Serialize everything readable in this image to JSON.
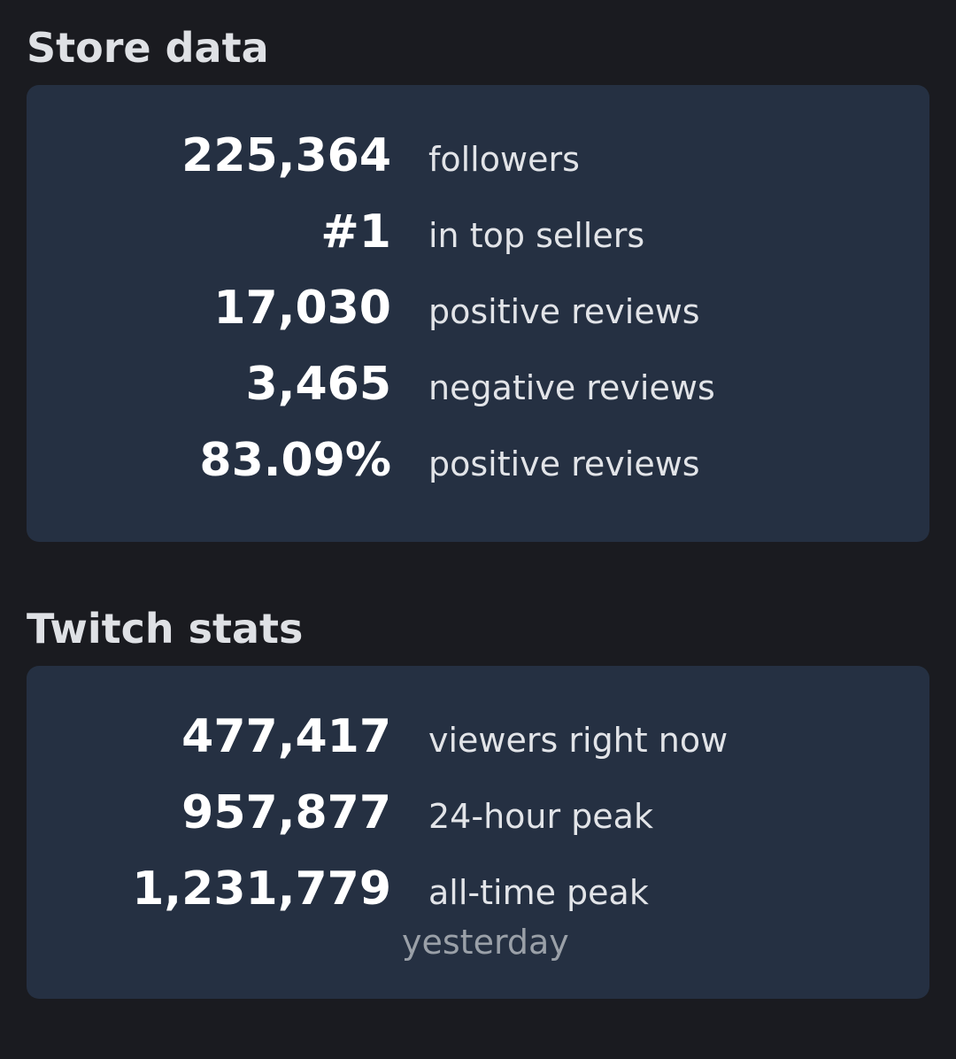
{
  "sections": [
    {
      "title": "Store data",
      "rows": [
        {
          "value": "225,364",
          "label": "followers"
        },
        {
          "value": "#1",
          "label": "in top sellers"
        },
        {
          "value": "17,030",
          "label": "positive reviews"
        },
        {
          "value": "3,465",
          "label": "negative reviews"
        },
        {
          "value": "83.09%",
          "label": "positive reviews"
        }
      ]
    },
    {
      "title": "Twitch stats",
      "rows": [
        {
          "value": "477,417",
          "label": "viewers right now"
        },
        {
          "value": "957,877",
          "label": "24-hour peak"
        },
        {
          "value": "1,231,779",
          "label": "all-time peak",
          "note": "yesterday"
        }
      ]
    }
  ]
}
